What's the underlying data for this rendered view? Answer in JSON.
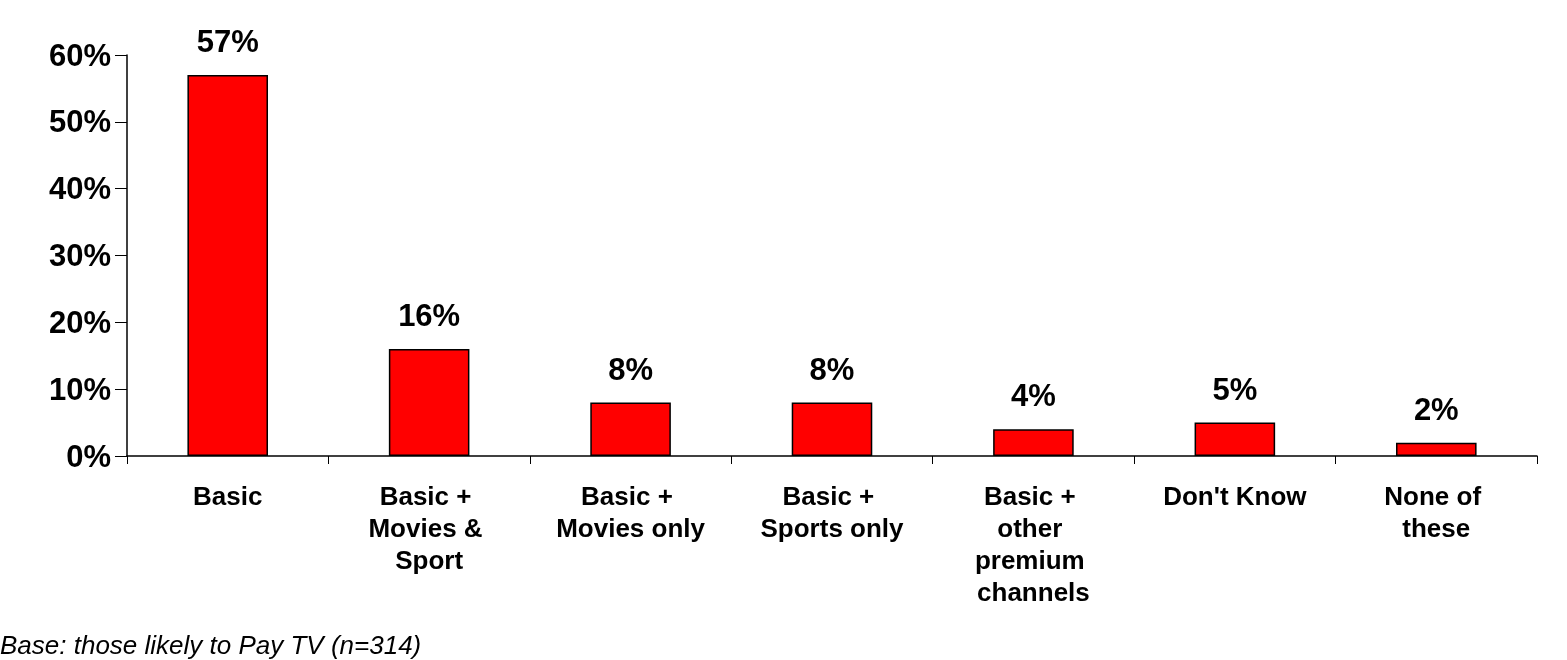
{
  "chart_data": {
    "type": "bar",
    "categories": [
      "Basic",
      "Basic + Movies & Sport",
      "Basic + Movies only",
      "Basic + Sports only",
      "Basic + other premium channels",
      "Don't Know",
      "None of these"
    ],
    "values": [
      57,
      16,
      8,
      8,
      4,
      5,
      2
    ],
    "color": "#ff0000",
    "ylim": [
      0,
      60
    ],
    "yticks": [
      {
        "value": 0,
        "label": "0%"
      },
      {
        "value": 10,
        "label": "10%"
      },
      {
        "value": 20,
        "label": "20%"
      },
      {
        "value": 30,
        "label": "30%"
      },
      {
        "value": 40,
        "label": "40%"
      },
      {
        "value": 50,
        "label": "50%"
      },
      {
        "value": 60,
        "label": "60%"
      }
    ],
    "value_labels": [
      "57%",
      "16%",
      "8%",
      "8%",
      "4%",
      "5%",
      "2%"
    ],
    "grid": false,
    "annotations": [
      "Base: those likely to Pay TV (n=314)"
    ]
  }
}
